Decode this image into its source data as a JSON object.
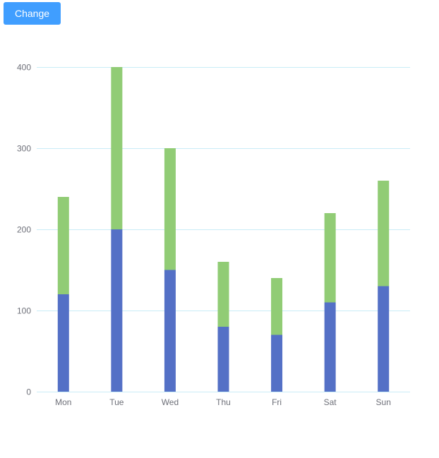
{
  "toolbar": {
    "change_label": "Change"
  },
  "colors": {
    "button": "#409eff",
    "series_1": "#5470c6",
    "series_2": "#91cc75",
    "grid": "#c9ecf7",
    "axis_text": "#6e7079"
  },
  "chart_data": {
    "type": "bar",
    "stacked": true,
    "categories": [
      "Mon",
      "Tue",
      "Wed",
      "Thu",
      "Fri",
      "Sat",
      "Sun"
    ],
    "series": [
      {
        "values": [
          120,
          200,
          150,
          80,
          70,
          110,
          130
        ],
        "color": "#5470c6"
      },
      {
        "values": [
          120,
          200,
          150,
          80,
          70,
          110,
          130
        ],
        "color": "#91cc75"
      }
    ],
    "yticks": [
      0,
      100,
      200,
      300,
      400
    ],
    "ylim": [
      0,
      400
    ],
    "grid": true,
    "legend": "none"
  }
}
